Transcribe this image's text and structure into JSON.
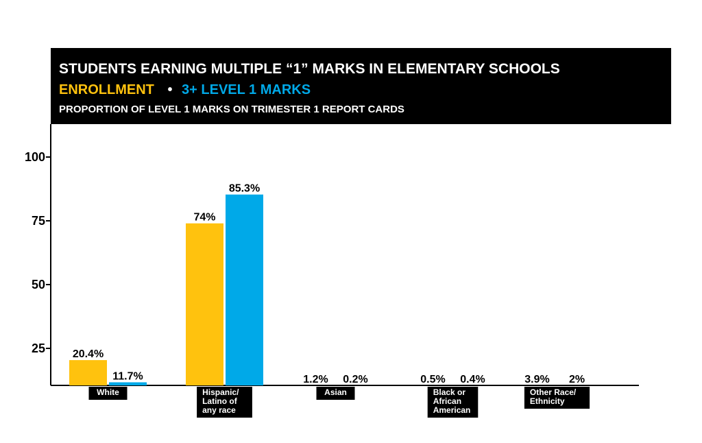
{
  "colors": {
    "enrollment": "#FFC20E",
    "marks": "#00A9E8",
    "header_bg": "#000000",
    "text": "#000000"
  },
  "header": {
    "title": "STUDENTS EARNING MULTIPLE “1” MARKS IN ELEMENTARY SCHOOLS",
    "legend_enrollment": "ENROLLMENT",
    "legend_separator": "•",
    "legend_marks": "3+ LEVEL 1 MARKS",
    "subtitle": "PROPORTION OF LEVEL 1 MARKS ON TRIMESTER 1 REPORT CARDS"
  },
  "chart_data": {
    "type": "bar",
    "title": "STUDENTS EARNING MULTIPLE “1” MARKS IN ELEMENTARY SCHOOLS",
    "subtitle": "PROPORTION OF LEVEL 1 MARKS ON TRIMESTER 1 REPORT CARDS",
    "categories": [
      [
        "White"
      ],
      [
        "Hispanic/",
        "Latino of",
        "any race"
      ],
      [
        "Asian"
      ],
      [
        "Black or",
        "African",
        "American"
      ],
      [
        "Other Race/",
        "Ethnicity"
      ]
    ],
    "series": [
      {
        "name": "ENROLLMENT",
        "values": [
          20.4,
          74,
          1.2,
          0.5,
          3.9
        ],
        "labels": [
          "20.4%",
          "74%",
          "1.2%",
          "0.5%",
          "3.9%"
        ]
      },
      {
        "name": "3+ LEVEL 1 MARKS",
        "values": [
          11.7,
          85.3,
          0.2,
          0.4,
          2
        ],
        "labels": [
          "11.7%",
          "85.3%",
          "0.2%",
          "0.4%",
          "2%"
        ]
      }
    ],
    "yticks": [
      25,
      50,
      75,
      100
    ],
    "ylim": [
      0,
      100
    ],
    "legend_position": "top",
    "grid": false
  }
}
